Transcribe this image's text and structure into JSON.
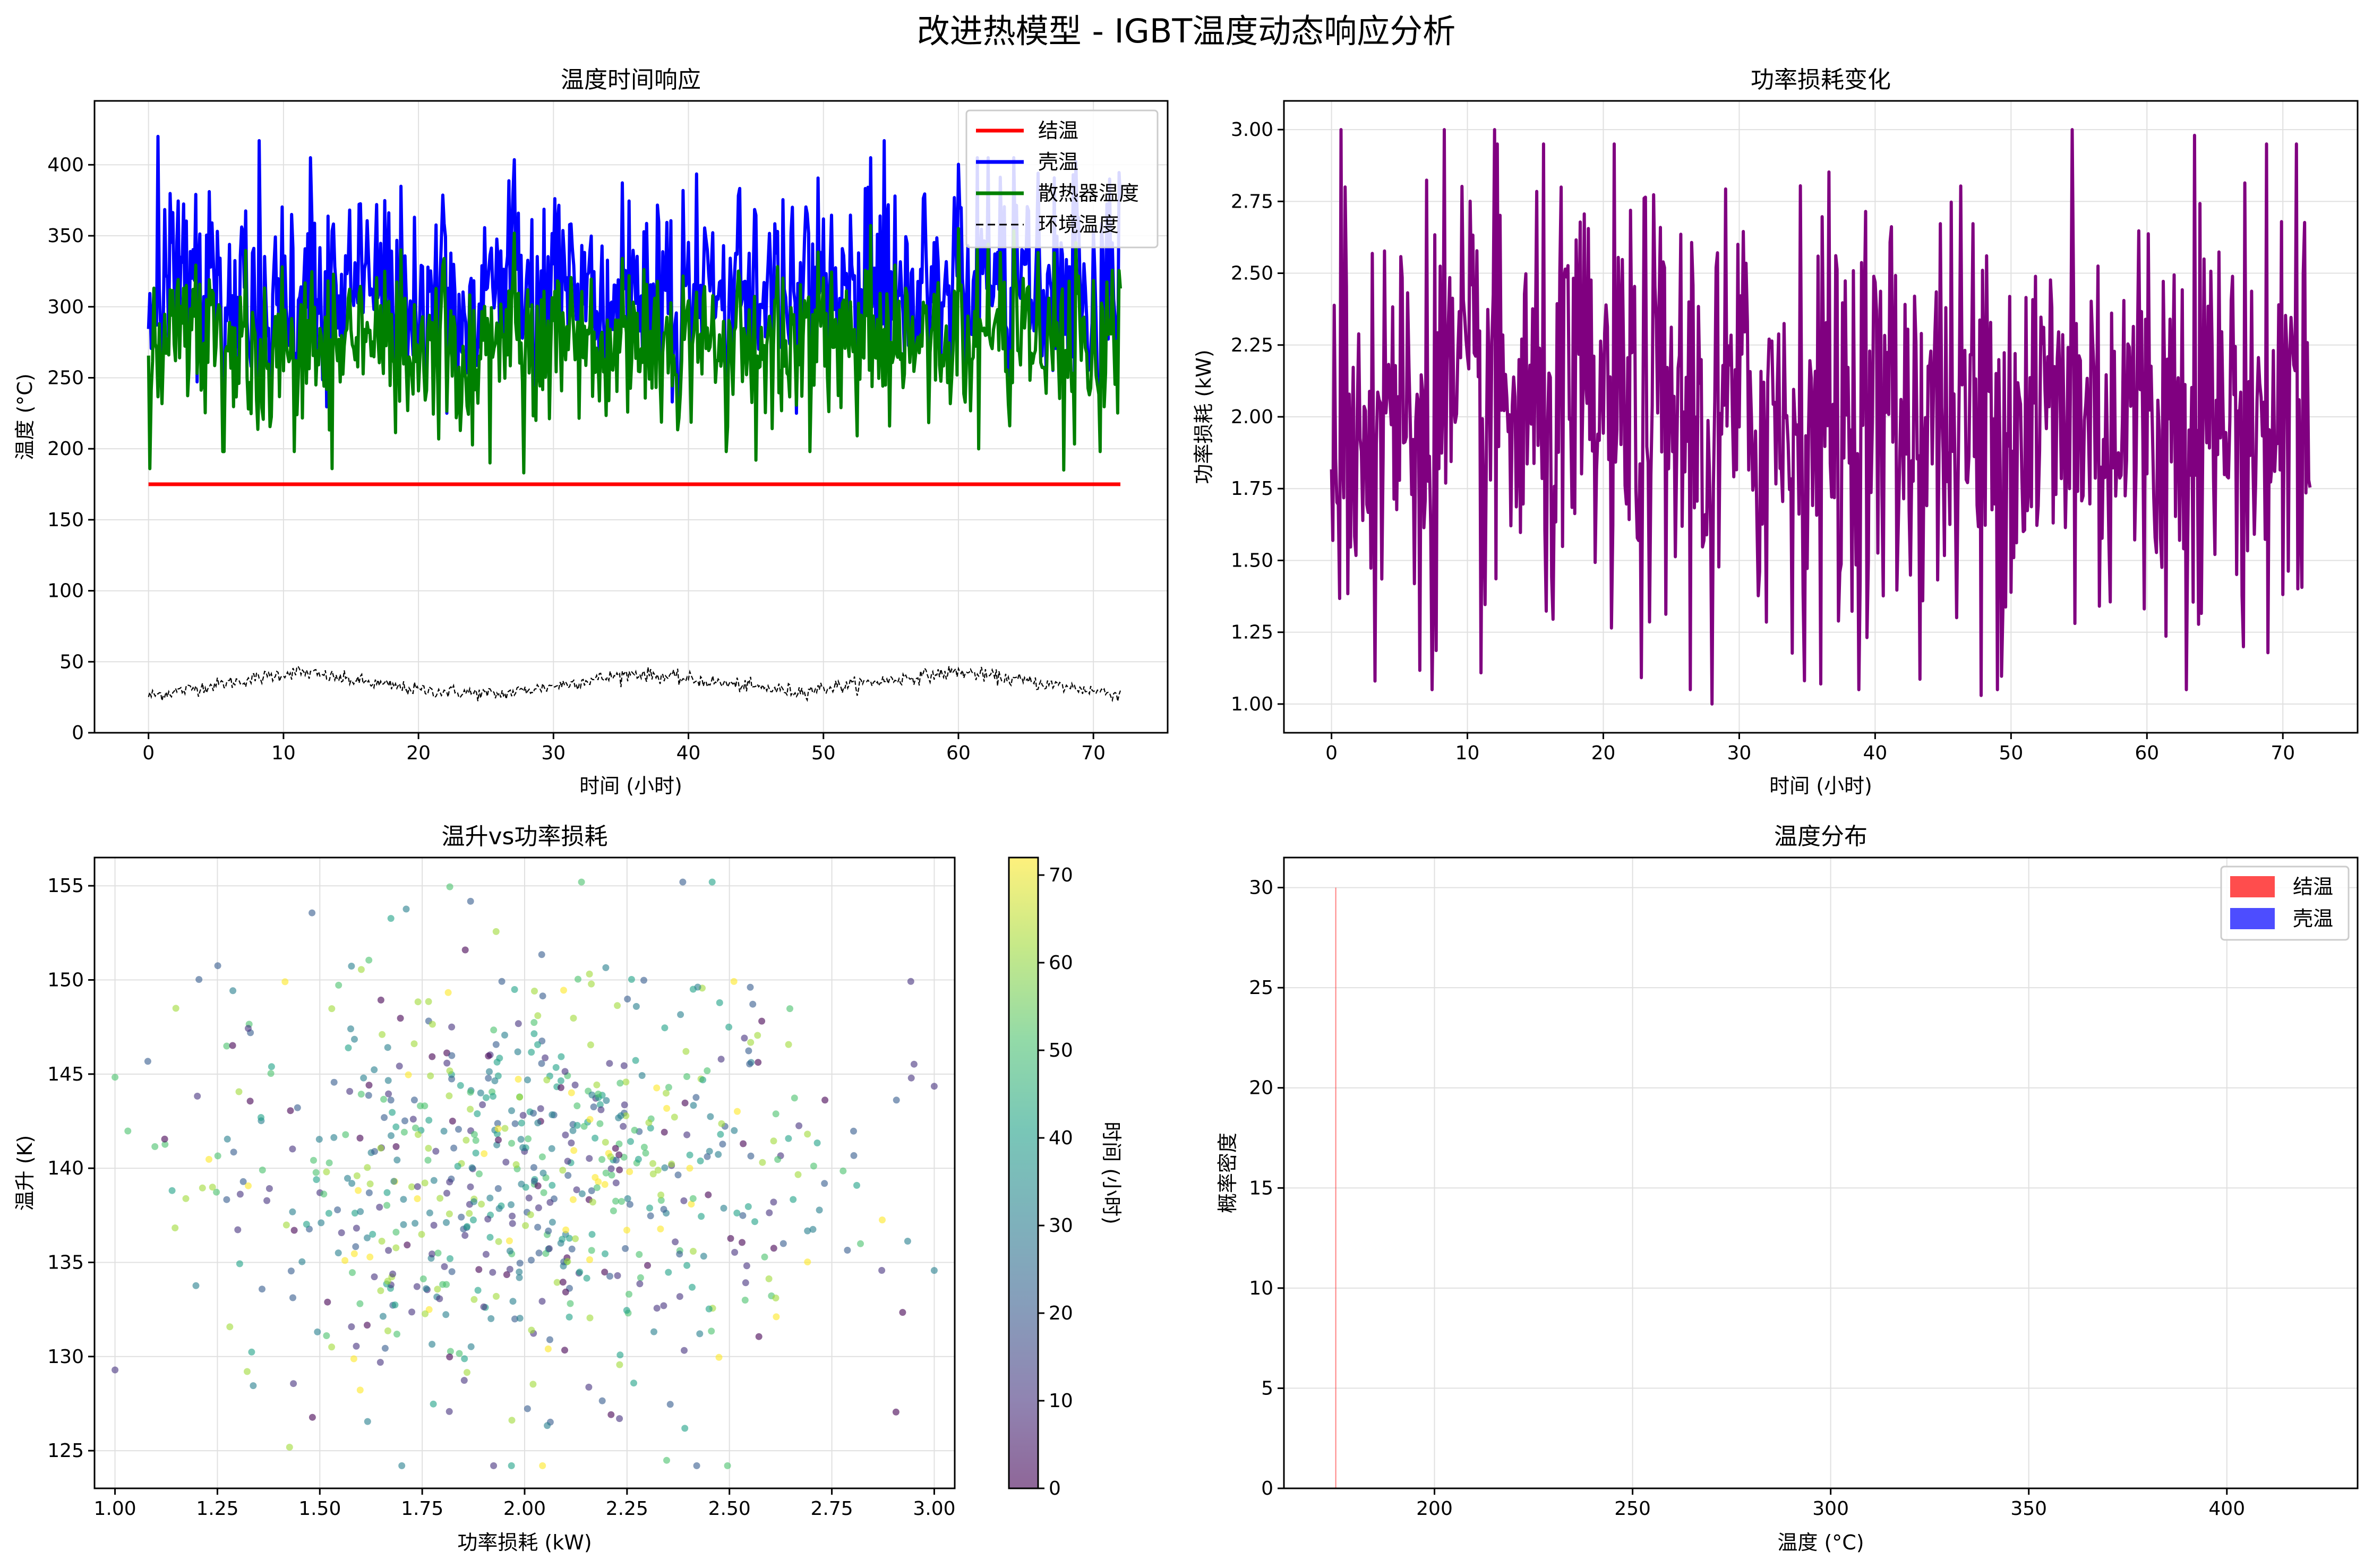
{
  "suptitle": "改进热模型 - IGBT温度动态响应分析",
  "colors": {
    "junction": "#ff0000",
    "case": "#0000ff",
    "heatsink": "#008000",
    "ambient": "#000000",
    "power": "#800080",
    "grid": "#e0e0e0"
  },
  "chart_data": [
    {
      "type": "line",
      "title": "温度时间响应",
      "xlabel": "时间 (小时)",
      "ylabel": "温度 (°C)",
      "xlim": [
        -4,
        75.5
      ],
      "ylim": [
        0,
        445
      ],
      "xticks": [
        0,
        10,
        20,
        30,
        40,
        50,
        60,
        70
      ],
      "yticks": [
        0,
        50,
        100,
        150,
        200,
        250,
        300,
        350,
        400
      ],
      "grid": true,
      "legend_position": "top-right",
      "series": [
        {
          "name": "结温",
          "color_key": "junction",
          "style": "solid",
          "constant": 175,
          "x_range": [
            0,
            72
          ]
        },
        {
          "name": "壳温",
          "color_key": "case",
          "style": "solid",
          "x_range": [
            0,
            72
          ],
          "y_mean": 310,
          "y_min": 225,
          "y_max": 420,
          "peaks": [
            [
              0.7,
              420
            ],
            [
              8.2,
              417
            ],
            [
              12.0,
              405
            ],
            [
              54.5,
              417
            ],
            [
              68.5,
              393
            ],
            [
              71.2,
              390
            ]
          ]
        },
        {
          "name": "散热器温度",
          "color_key": "heatsink",
          "style": "solid",
          "x_range": [
            0,
            72
          ],
          "y_mean": 275,
          "y_min": 183,
          "y_max": 365,
          "troughs": [
            [
              0.1,
              186
            ],
            [
              13.6,
              186
            ],
            [
              25.3,
              190
            ],
            [
              27.8,
              183
            ],
            [
              45.0,
              192
            ],
            [
              67.8,
              185
            ]
          ]
        },
        {
          "name": "环境温度",
          "color_key": "ambient",
          "style": "dashed",
          "x_range": [
            0,
            72
          ],
          "y_mean": 35,
          "y_min": 21,
          "y_max": 50,
          "trend": [
            [
              0,
              26
            ],
            [
              11,
              43
            ],
            [
              20,
              30
            ],
            [
              26,
              27
            ],
            [
              36,
              42
            ],
            [
              48,
              29
            ],
            [
              60,
              43
            ],
            [
              72,
              27
            ]
          ]
        }
      ]
    },
    {
      "type": "line",
      "title": "功率损耗变化",
      "xlabel": "时间 (小时)",
      "ylabel": "功率损耗 (kW)",
      "xlim": [
        -3.5,
        75.5
      ],
      "ylim": [
        0.9,
        3.1
      ],
      "xticks": [
        0,
        10,
        20,
        30,
        40,
        50,
        60,
        70
      ],
      "yticks": [
        1.0,
        1.25,
        1.5,
        1.75,
        2.0,
        2.25,
        2.5,
        2.75,
        3.0
      ],
      "ytick_labels": [
        "1.00",
        "1.25",
        "1.50",
        "1.75",
        "2.00",
        "2.25",
        "2.50",
        "2.75",
        "3.00"
      ],
      "grid": true,
      "series": [
        {
          "name": "",
          "color_key": "power",
          "x_range": [
            0,
            72
          ],
          "y_min": 1.0,
          "y_max": 3.0,
          "y_mean": 2.0,
          "extremes": [
            [
              0.7,
              3.0
            ],
            [
              3.2,
              1.08
            ],
            [
              8.3,
              3.0
            ],
            [
              12.0,
              3.0
            ],
            [
              28.0,
              1.0
            ],
            [
              47.8,
              1.03
            ],
            [
              54.5,
              3.0
            ],
            [
              63.5,
              2.98
            ],
            [
              71.0,
              2.95
            ]
          ]
        }
      ]
    },
    {
      "type": "scatter",
      "title": "温升vs功率损耗",
      "xlabel": "功率损耗 (kW)",
      "ylabel": "温升 (K)",
      "xlim": [
        0.95,
        3.05
      ],
      "ylim": [
        123,
        156.5
      ],
      "xticks": [
        1.0,
        1.25,
        1.5,
        1.75,
        2.0,
        2.25,
        2.5,
        2.75,
        3.0
      ],
      "xtick_labels": [
        "1.00",
        "1.25",
        "1.50",
        "1.75",
        "2.00",
        "2.25",
        "2.50",
        "2.75",
        "3.00"
      ],
      "yticks": [
        125,
        130,
        135,
        140,
        145,
        150,
        155
      ],
      "grid": true,
      "n_points": 720,
      "x_mean": 2.0,
      "x_sd": 0.38,
      "y_mean": 139.5,
      "y_sd": 6.0,
      "color_by": "time",
      "colormap": "viridis",
      "alpha": 0.6,
      "colorbar": {
        "label": "时间 (小时)",
        "ticks": [
          0,
          10,
          20,
          30,
          40,
          50,
          60,
          70
        ],
        "range": [
          0,
          72
        ]
      }
    },
    {
      "type": "bar",
      "subtype": "histogram",
      "title": "温度分布",
      "xlabel": "温度 (°C)",
      "ylabel": "概率密度",
      "xlim": [
        162,
        433
      ],
      "ylim": [
        0,
        31.5
      ],
      "xticks": [
        200,
        250,
        300,
        350,
        400
      ],
      "yticks": [
        0,
        5,
        10,
        15,
        20,
        25,
        30
      ],
      "grid": true,
      "legend_position": "top-right",
      "series": [
        {
          "name": "结温",
          "color": "#ff4d4d",
          "bins": [
            [
              174.95,
              175.05,
              30
            ]
          ]
        },
        {
          "name": "壳温",
          "color": "#4d4dff",
          "bins": []
        }
      ]
    }
  ]
}
